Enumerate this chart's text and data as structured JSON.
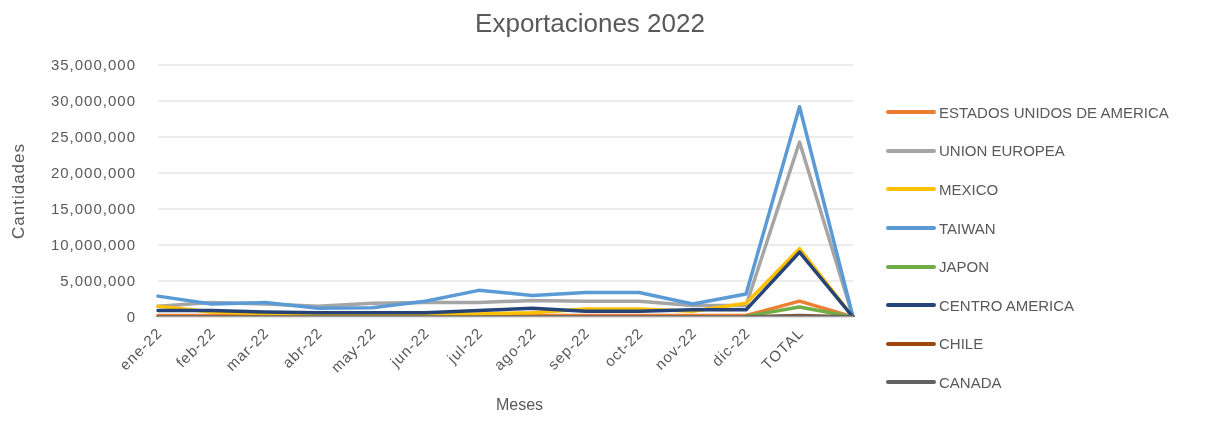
{
  "chart_data": {
    "type": "line",
    "title": "Exportaciones 2022",
    "xlabel": "Meses",
    "ylabel": "Cantidades",
    "categories": [
      "ene-22",
      "feb-22",
      "mar-22",
      "abr-22",
      "may-22",
      "jun-22",
      "jul-22",
      "ago-22",
      "sep-22",
      "oct-22",
      "nov-22",
      "dic-22",
      "TOTAL",
      null
    ],
    "series": [
      {
        "name": "ESTADOS UNIDOS DE AMERICA",
        "color": "#ed7d31",
        "values": [
          200000,
          200000,
          200000,
          100000,
          100000,
          200000,
          200000,
          200000,
          200000,
          200000,
          200000,
          200000,
          2200000,
          0
        ]
      },
      {
        "name": "UNION EUROPEA",
        "color": "#a5a5a5",
        "values": [
          1500000,
          2000000,
          1800000,
          1500000,
          1900000,
          2000000,
          2000000,
          2300000,
          2200000,
          2200000,
          1600000,
          1600000,
          24300000,
          0
        ]
      },
      {
        "name": "MEXICO",
        "color": "#ffc000",
        "values": [
          1500000,
          700000,
          500000,
          300000,
          300000,
          300000,
          400000,
          600000,
          1100000,
          1100000,
          800000,
          1900000,
          9500000,
          0
        ]
      },
      {
        "name": "TAIWAN",
        "color": "#5b9bd5",
        "values": [
          2900000,
          1800000,
          2000000,
          1200000,
          1300000,
          2200000,
          3700000,
          3000000,
          3400000,
          3400000,
          1800000,
          3200000,
          29200000,
          0
        ]
      },
      {
        "name": "JAPON",
        "color": "#70ad47",
        "values": [
          null,
          null,
          null,
          null,
          null,
          null,
          null,
          null,
          null,
          null,
          null,
          100000,
          1400000,
          0
        ]
      },
      {
        "name": "CENTRO AMERICA",
        "color": "#264478",
        "values": [
          900000,
          900000,
          700000,
          600000,
          600000,
          600000,
          900000,
          1200000,
          800000,
          800000,
          1000000,
          1000000,
          9000000,
          0
        ]
      },
      {
        "name": "CHILE",
        "color": "#9e480e",
        "values": [
          null,
          null,
          null,
          null,
          null,
          null,
          null,
          null,
          null,
          null,
          null,
          0,
          200000,
          0
        ]
      },
      {
        "name": "CANADA",
        "color": "#636363",
        "values": [
          0,
          0,
          0,
          0,
          0,
          0,
          0,
          0,
          0,
          0,
          0,
          0,
          100000,
          0
        ]
      }
    ],
    "ylim": [
      0,
      35000000
    ],
    "yticks": [
      0,
      {
        "value": 5000000,
        "label": "5,000,000"
      },
      {
        "value": 10000000,
        "label": "10,000,000"
      },
      {
        "value": 15000000,
        "label": "15,000,000"
      },
      {
        "value": 20000000,
        "label": "20,000,000"
      },
      {
        "value": 25000000,
        "label": "25,000,000"
      },
      {
        "value": 30000000,
        "label": "30,000,000"
      },
      {
        "value": 35000000,
        "label": "35,000,000"
      }
    ],
    "grid": "y",
    "legend": "right",
    "marker": "none"
  }
}
